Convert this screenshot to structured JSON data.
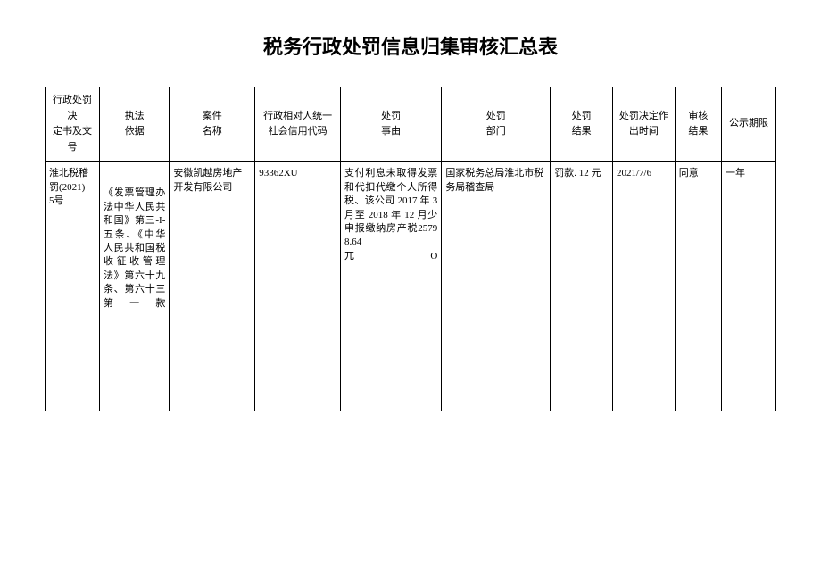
{
  "title": "税务行政处罚信息归集审核汇总表",
  "headers": {
    "col0": "行政处罚决\n定书及文号",
    "col1": "执法\n依据",
    "col2": "案件\n名称",
    "col3": "行政相对人统一\n社会信用代码",
    "col4": "处罚\n事由",
    "col5": "处罚\n部门",
    "col6": "处罚\n结果",
    "col7": "处罚决定作出时间",
    "col8": "审核\n结果",
    "col9": "公示期限"
  },
  "rows": [
    {
      "doc_no": "淮北税稽罚(2021)\n5号",
      "legal_basis": "《发票管理办法中华人民共和国》第三-I-五条、《中华人民共和国税收征收管理法》第六十九条、第六十三第一款",
      "case_name": "安徽凯越房地产开发有限公司",
      "credit_code": "93362XU",
      "reason": "支付利息未取得发票和代扣代缴个人所得税、该公司 2017 年 3 月至 2018 年 12 月少申报缴纳房产税25798.64\n兀　　　　　O",
      "department": "国家税务总局淮北市税务局稽查局",
      "result": "罚款. 12 元",
      "decision_date": "2021/7/6",
      "audit_result": "同意",
      "publicity_period": "一年"
    }
  ]
}
